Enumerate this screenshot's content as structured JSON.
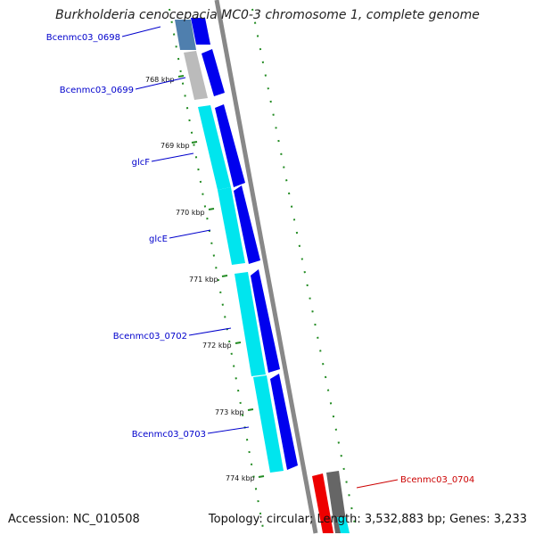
{
  "title": "Burkholderia cenocepacia MC0-3 chromosome 1, complete genome",
  "footer": {
    "accession": "Accession: NC_010508",
    "summary": "Topology: circular; Length: 3,532,883 bp; Genes: 3,233"
  },
  "ticks": [
    "768 kbp",
    "769 kbp",
    "770 kbp",
    "771 kbp",
    "772 kbp",
    "773 kbp",
    "774 kbp"
  ],
  "gene_labels": [
    {
      "text": "Bcenmc03_0698",
      "color": "#0000cc"
    },
    {
      "text": "Bcenmc03_0699",
      "color": "#0000cc"
    },
    {
      "text": "glcF",
      "color": "#0000cc"
    },
    {
      "text": "glcE",
      "color": "#0000cc"
    },
    {
      "text": "Bcenmc03_0702",
      "color": "#0000cc"
    },
    {
      "text": "Bcenmc03_0703",
      "color": "#0000cc"
    },
    {
      "text": "Bcenmc03_0704",
      "color": "#cc0000"
    }
  ],
  "colors": {
    "forward_cds": "#0000ee",
    "reverse_cds": "#cc0000",
    "match": "#00e5ee",
    "backbone": "#888888",
    "tick": "#228b22"
  }
}
